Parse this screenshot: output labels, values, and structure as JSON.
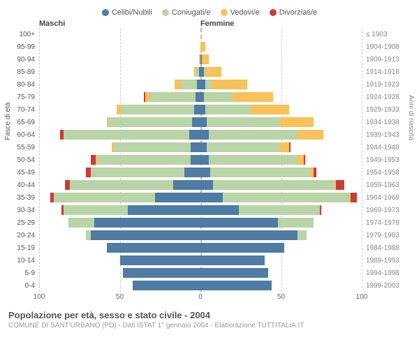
{
  "legend": [
    {
      "label": "Celibi/Nubili",
      "color": "#4f7ba5"
    },
    {
      "label": "Coniugati/e",
      "color": "#b9d4a6"
    },
    {
      "label": "Vedovi/e",
      "color": "#f8c15a"
    },
    {
      "label": "Divorziati/e",
      "color": "#cf3a36"
    }
  ],
  "headers": {
    "male": "Maschi",
    "female": "Femmine"
  },
  "axis_left_title": "Fasce di età",
  "axis_right_title": "Anni di nascita",
  "xmax": 100,
  "xticks_left": [
    100,
    50,
    0
  ],
  "xticks_right": [
    50,
    100
  ],
  "title": "Popolazione per età, sesso e stato civile - 2004",
  "subtitle": "COMUNE DI SANT'URBANO (PD) - Dati ISTAT 1° gennaio 2004 - Elaborazione TUTTITALIA.IT",
  "colors": {
    "celibi": "#4f7ba5",
    "coniugati": "#b9d4a6",
    "vedovi": "#f8c15a",
    "divorziati": "#cf3a36",
    "grid": "#cccccc",
    "center": "#bbbbbb",
    "bg": "#ffffff"
  },
  "bands": [
    {
      "age": "100+",
      "birth": "≤ 1903",
      "m": [
        0,
        0,
        0,
        0
      ],
      "f": [
        0,
        0,
        0,
        0
      ]
    },
    {
      "age": "95-99",
      "birth": "1904-1908",
      "m": [
        0,
        0,
        0,
        0
      ],
      "f": [
        0,
        0,
        3,
        0
      ]
    },
    {
      "age": "90-94",
      "birth": "1909-1913",
      "m": [
        0,
        0,
        1,
        0
      ],
      "f": [
        1,
        0,
        4,
        0
      ]
    },
    {
      "age": "85-89",
      "birth": "1914-1918",
      "m": [
        1,
        2,
        1,
        0
      ],
      "f": [
        2,
        1,
        10,
        0
      ]
    },
    {
      "age": "80-84",
      "birth": "1919-1923",
      "m": [
        2,
        10,
        4,
        0
      ],
      "f": [
        3,
        4,
        22,
        0
      ]
    },
    {
      "age": "75-79",
      "birth": "1924-1928",
      "m": [
        3,
        28,
        3,
        1
      ],
      "f": [
        2,
        18,
        25,
        0
      ]
    },
    {
      "age": "70-74",
      "birth": "1929-1933",
      "m": [
        4,
        45,
        3,
        0
      ],
      "f": [
        3,
        28,
        24,
        0
      ]
    },
    {
      "age": "65-69",
      "birth": "1934-1938",
      "m": [
        5,
        52,
        1,
        0
      ],
      "f": [
        4,
        45,
        21,
        0
      ]
    },
    {
      "age": "60-64",
      "birth": "1939-1943",
      "m": [
        7,
        78,
        0,
        2
      ],
      "f": [
        5,
        55,
        16,
        0
      ]
    },
    {
      "age": "55-59",
      "birth": "1944-1948",
      "m": [
        6,
        48,
        1,
        0
      ],
      "f": [
        4,
        45,
        6,
        1
      ]
    },
    {
      "age": "50-54",
      "birth": "1949-1953",
      "m": [
        6,
        58,
        1,
        3
      ],
      "f": [
        5,
        55,
        4,
        1
      ]
    },
    {
      "age": "45-49",
      "birth": "1954-1958",
      "m": [
        10,
        58,
        0,
        3
      ],
      "f": [
        6,
        62,
        2,
        2
      ]
    },
    {
      "age": "40-44",
      "birth": "1959-1963",
      "m": [
        17,
        64,
        0,
        3
      ],
      "f": [
        8,
        75,
        1,
        5
      ]
    },
    {
      "age": "35-39",
      "birth": "1964-1968",
      "m": [
        28,
        63,
        0,
        2
      ],
      "f": [
        14,
        78,
        1,
        4
      ]
    },
    {
      "age": "30-34",
      "birth": "1969-1973",
      "m": [
        45,
        40,
        0,
        1
      ],
      "f": [
        24,
        50,
        0,
        1
      ]
    },
    {
      "age": "25-29",
      "birth": "1974-1978",
      "m": [
        66,
        16,
        0,
        0
      ],
      "f": [
        48,
        22,
        0,
        0
      ]
    },
    {
      "age": "20-24",
      "birth": "1979-1983",
      "m": [
        68,
        3,
        0,
        0
      ],
      "f": [
        60,
        6,
        0,
        0
      ]
    },
    {
      "age": "15-19",
      "birth": "1984-1988",
      "m": [
        58,
        0,
        0,
        0
      ],
      "f": [
        52,
        0,
        0,
        0
      ]
    },
    {
      "age": "10-14",
      "birth": "1989-1993",
      "m": [
        50,
        0,
        0,
        0
      ],
      "f": [
        40,
        0,
        0,
        0
      ]
    },
    {
      "age": "5-9",
      "birth": "1994-1998",
      "m": [
        48,
        0,
        0,
        0
      ],
      "f": [
        42,
        0,
        0,
        0
      ]
    },
    {
      "age": "0-4",
      "birth": "1999-2003",
      "m": [
        42,
        0,
        0,
        0
      ],
      "f": [
        44,
        0,
        0,
        0
      ]
    }
  ]
}
